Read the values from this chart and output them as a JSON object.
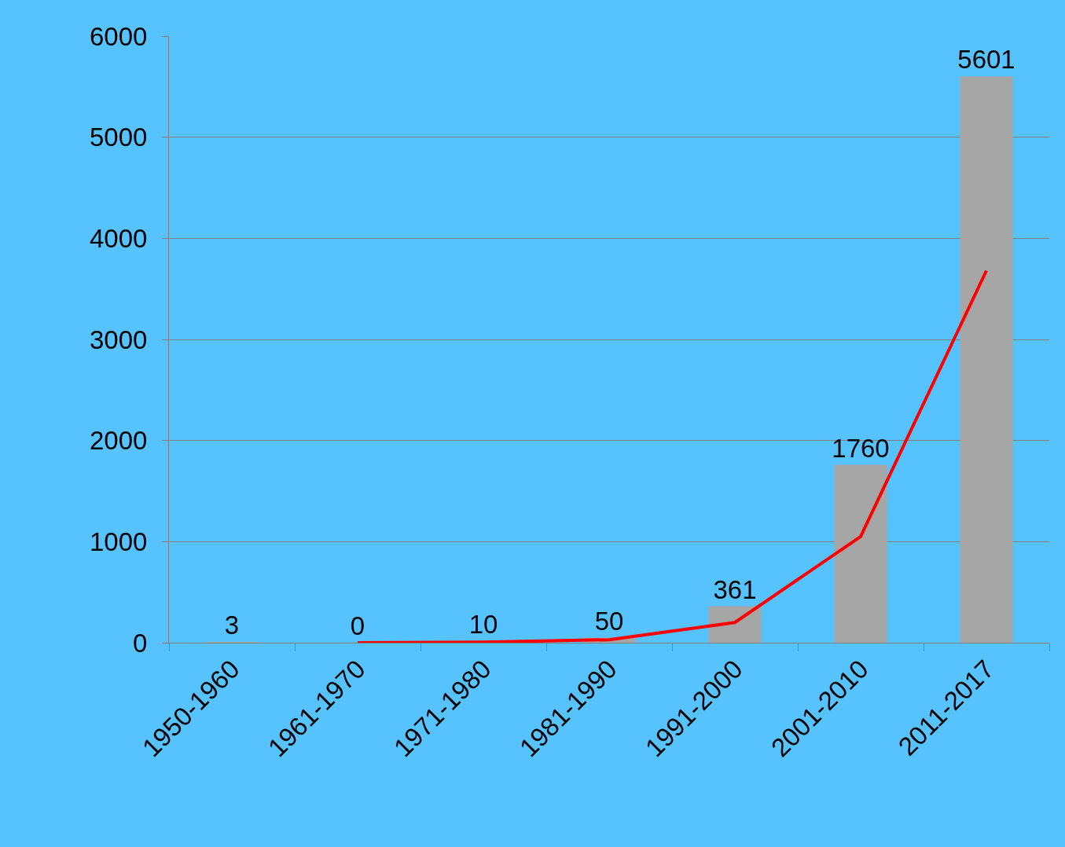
{
  "chart_data": {
    "type": "bar",
    "categories": [
      "1950-1960",
      "1961-1970",
      "1971-1980",
      "1981-1990",
      "1991-2000",
      "2001-2010",
      "2011-2017"
    ],
    "series": [
      {
        "color": "#a6a6a6",
        "values": [
          3,
          0,
          10,
          50,
          361,
          1760,
          5601
        ],
        "value_labels": [
          "3",
          "0",
          "10",
          "50",
          "361",
          "1760",
          "5601"
        ]
      },
      {
        "type": "line",
        "color": "#ff0000",
        "values": [
          null,
          0,
          5,
          30,
          200,
          1050,
          3680
        ]
      }
    ],
    "ylim": [
      0,
      6000
    ],
    "yticks": [
      0,
      1000,
      2000,
      3000,
      4000,
      5000,
      6000
    ],
    "grid": "y"
  }
}
